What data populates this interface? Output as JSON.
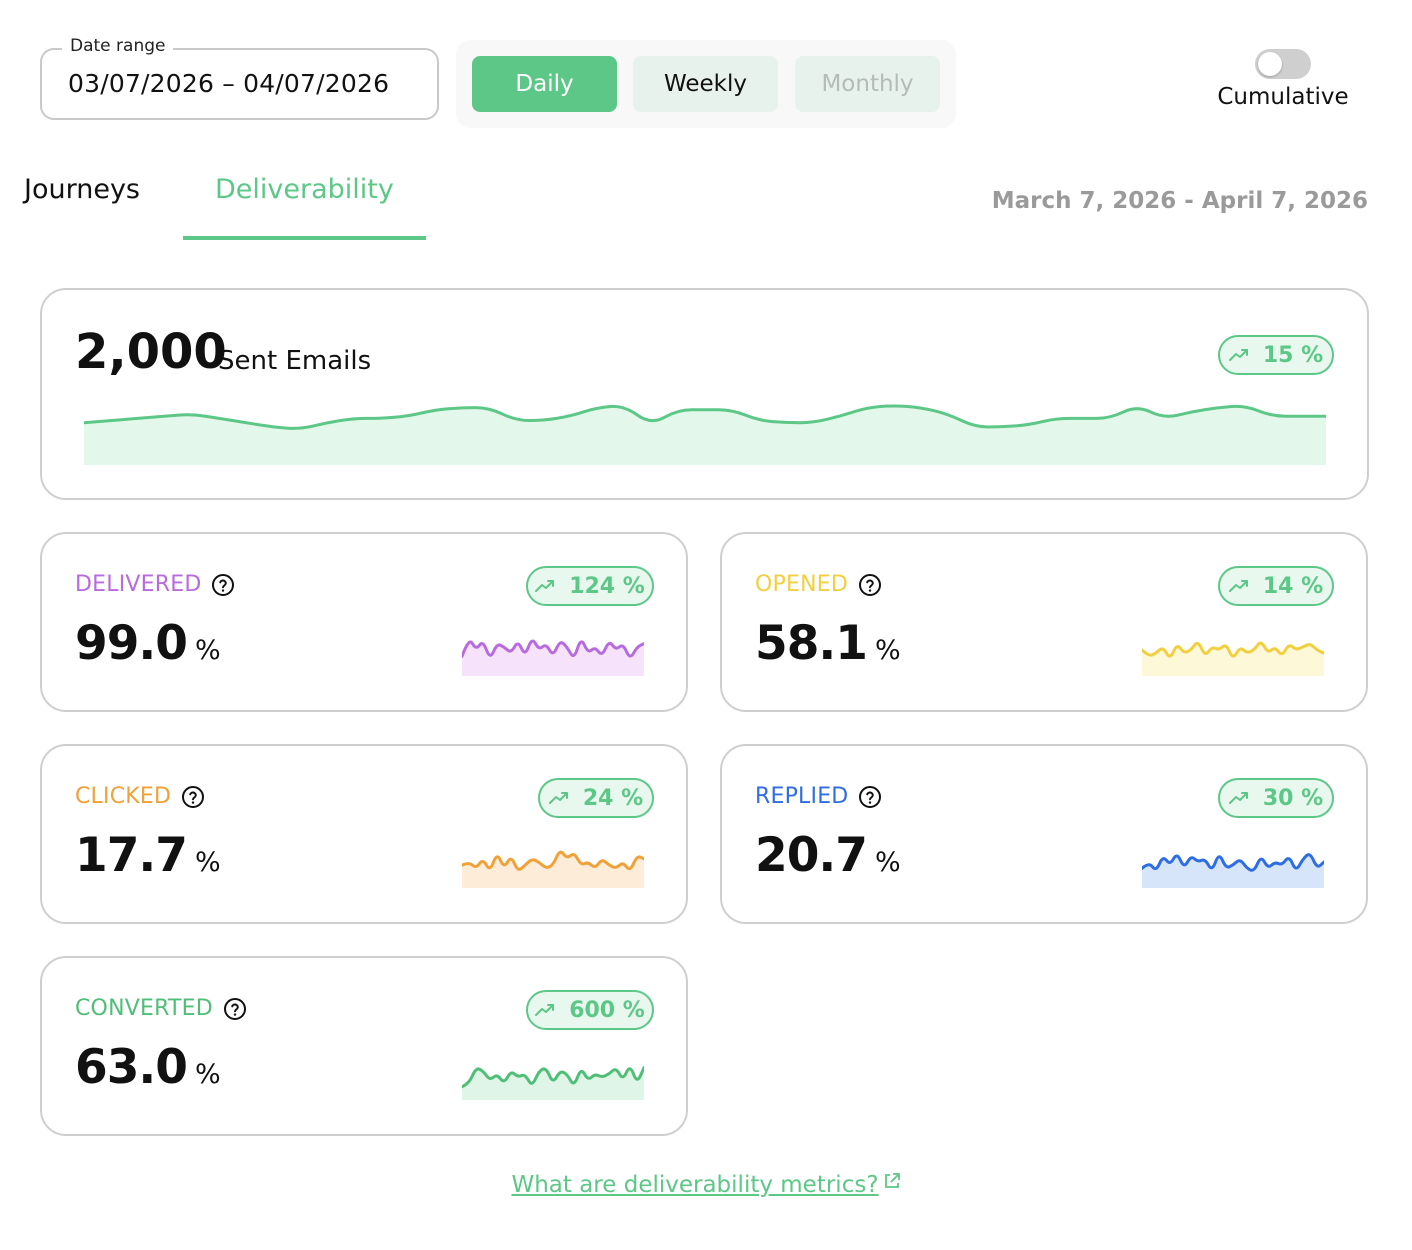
{
  "filters": {
    "date_range_label": "Date range",
    "date_range_value": "03/07/2026 – 04/07/2026",
    "granularity": [
      "Daily",
      "Weekly",
      "Monthly"
    ],
    "granularity_selected": "Daily",
    "cumulative_label": "Cumulative",
    "cumulative_on": false
  },
  "tabs": {
    "items": [
      "Journeys",
      "Deliverability"
    ],
    "active": "Deliverability"
  },
  "period_label": "March 7, 2026 - April 7, 2026",
  "sent": {
    "value": "2,000",
    "label": "Sent Emails",
    "change": "15 %",
    "trend_icon": "trending-up-icon",
    "color": "#5cc786",
    "fill": "#e3f8ea",
    "sparkline": [
      55,
      56,
      57,
      58,
      59,
      57,
      55,
      53,
      52,
      55,
      57,
      57,
      58,
      61,
      62,
      62,
      56,
      56,
      58,
      62,
      63,
      54,
      61,
      61,
      61,
      56,
      55,
      55,
      58,
      62,
      63,
      62,
      59,
      53,
      53,
      54,
      57,
      57,
      57,
      63,
      57,
      60,
      62,
      63,
      58,
      58,
      58
    ]
  },
  "metrics": [
    {
      "key": "delivered",
      "label": "DELIVERED",
      "value": "99.0",
      "unit": "%",
      "change": "124 %",
      "color": "#b86be0",
      "fill": "#f6e3fb",
      "sparkline": [
        3,
        9,
        5,
        8,
        2,
        7,
        6,
        4,
        8,
        3,
        9,
        5,
        7,
        3,
        8,
        6,
        2,
        9,
        4,
        6,
        3,
        8,
        5,
        7,
        2,
        6,
        7
      ]
    },
    {
      "key": "opened",
      "label": "OPENED",
      "value": "58.1",
      "unit": "%",
      "change": "14 %",
      "color": "#f2cf3e",
      "fill": "#fdf8d8",
      "sparkline": [
        5,
        3,
        4,
        6,
        2,
        7,
        4,
        5,
        8,
        3,
        6,
        5,
        7,
        2,
        6,
        4,
        5,
        8,
        4,
        6,
        3,
        7,
        5,
        6,
        7,
        5,
        4
      ]
    },
    {
      "key": "clicked",
      "label": "CLICKED",
      "value": "17.7",
      "unit": "%",
      "change": "24 %",
      "color": "#f0a138",
      "fill": "#fdecd8",
      "sparkline": [
        4,
        5,
        3,
        6,
        2,
        8,
        3,
        7,
        2,
        4,
        6,
        5,
        3,
        4,
        9,
        6,
        8,
        4,
        5,
        3,
        6,
        4,
        3,
        5,
        2,
        7,
        6
      ]
    },
    {
      "key": "replied",
      "label": "REPLIED",
      "value": "20.7",
      "unit": "%",
      "change": "30 %",
      "color": "#2f6de3",
      "fill": "#d6e5fa",
      "sparkline": [
        3,
        5,
        2,
        7,
        4,
        8,
        3,
        7,
        5,
        6,
        2,
        8,
        3,
        4,
        6,
        3,
        2,
        7,
        3,
        5,
        4,
        7,
        2,
        6,
        8,
        3,
        5
      ]
    },
    {
      "key": "converted",
      "label": "CONVERTED",
      "value": "63.0",
      "unit": "%",
      "change": "600 %",
      "color": "#4fbf78",
      "fill": "#dff5e7",
      "sparkline": [
        1,
        2,
        7,
        6,
        3,
        5,
        2,
        6,
        4,
        5,
        1,
        6,
        7,
        2,
        6,
        5,
        1,
        7,
        3,
        5,
        4,
        5,
        7,
        3,
        8,
        2,
        7
      ]
    }
  ],
  "help_link": "What are deliverability metrics?"
}
